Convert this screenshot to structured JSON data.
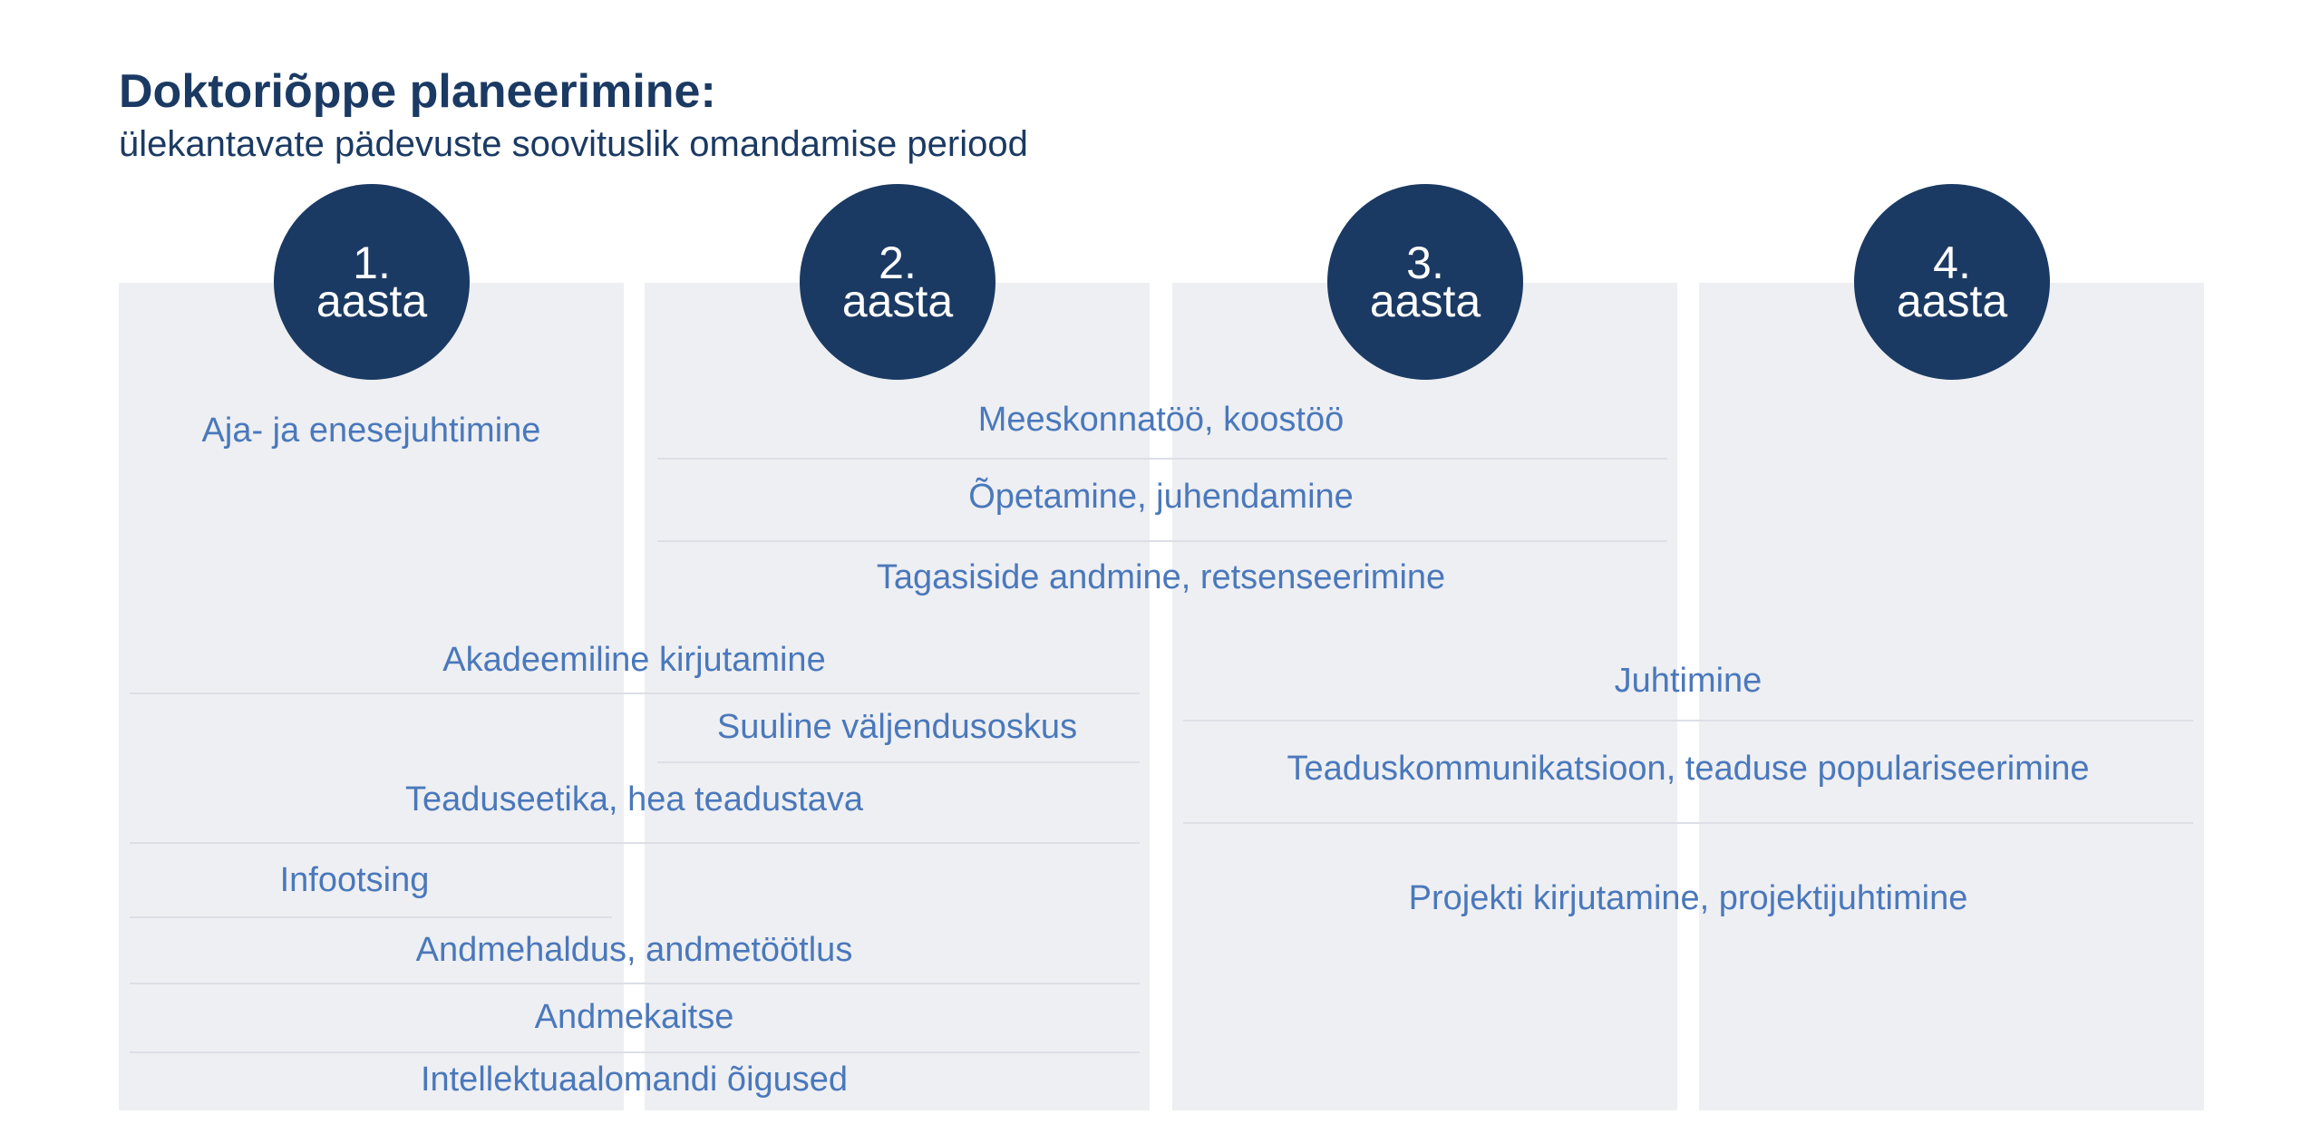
{
  "title": "Doktoriõppe planeerimine:",
  "subtitle": "ülekantavate pädevuste soovituslik omandamise periood",
  "colors": {
    "dark_navy": "#1b3a63",
    "label_blue": "#4a78bb",
    "column_bg": "#eeeff3",
    "separator": "#dcdfe6"
  },
  "years": [
    {
      "number": "1.",
      "word": "aasta"
    },
    {
      "number": "2.",
      "word": "aasta"
    },
    {
      "number": "3.",
      "word": "aasta"
    },
    {
      "number": "4.",
      "word": "aasta"
    }
  ],
  "competencies": [
    {
      "label": "Aja- ja enesejuhtimine",
      "years": [
        1
      ]
    },
    {
      "label": "Meeskonnatöö, koostöö",
      "years": [
        2,
        3
      ]
    },
    {
      "label": "Õpetamine, juhendamine",
      "years": [
        2,
        3
      ]
    },
    {
      "label": "Tagasiside andmine, retsenseerimine",
      "years": [
        2,
        3
      ]
    },
    {
      "label": "Akadeemiline kirjutamine",
      "years": [
        1,
        2
      ]
    },
    {
      "label": "Suuline väljendusoskus",
      "years": [
        2
      ]
    },
    {
      "label": "Teaduseetika, hea teadustava",
      "years": [
        1,
        2
      ]
    },
    {
      "label": "Infootsing",
      "years": [
        1
      ]
    },
    {
      "label": "Andmehaldus, andmetöötlus",
      "years": [
        1,
        2
      ]
    },
    {
      "label": "Andmekaitse",
      "years": [
        1,
        2
      ]
    },
    {
      "label": "Intellektuaalomandi õigused",
      "years": [
        1,
        2
      ]
    },
    {
      "label": "Juhtimine",
      "years": [
        3,
        4
      ]
    },
    {
      "label": "Teaduskommunikatsioon, teaduse populariseerimine",
      "years": [
        3,
        4
      ]
    },
    {
      "label": "Projekti kirjutamine, projektijuhtimine",
      "years": [
        3,
        4
      ]
    }
  ]
}
